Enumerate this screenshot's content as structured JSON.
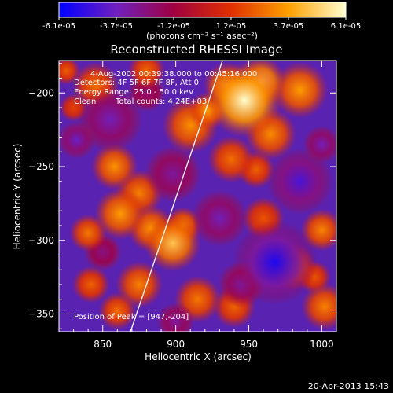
{
  "chart_data": {
    "type": "heatmap",
    "title": "Reconstructed RHESSI Image",
    "xlabel": "Heliocentric X (arcsec)",
    "ylabel": "Heliocentric Y (arcsec)",
    "xlim": [
      820,
      1010
    ],
    "ylim": [
      -362,
      -178
    ],
    "xticks": [
      850,
      900,
      950,
      1000
    ],
    "yticks": [
      -200,
      -250,
      -300,
      -350
    ],
    "colorbar": {
      "range": [
        -6.1e-05,
        6.1e-05
      ],
      "tick_labels": [
        "-6.1e-05",
        "-3.7e-05",
        "-1.2e-05",
        "1.2e-05",
        "3.7e-05",
        "6.1e-05"
      ],
      "units": "(photons cm⁻² s⁻¹ asec⁻²)",
      "colors": [
        "#0000ff",
        "#7020c0",
        "#a00040",
        "#e03000",
        "#ffa000",
        "#ffffd0"
      ]
    },
    "annotations": {
      "time": "4-Aug-2002 00:39:38.000 to 00:45:16.000",
      "detectors": "Detectors: 4F 5F 6F 7F 8F, Att 0",
      "energy": "Energy Range: 25.0 - 50.0 keV",
      "clean": "Clean",
      "counts": "Total counts: 4.24E+03",
      "peak": "Position of Peak = [947,-204]"
    },
    "limb_line": [
      [
        869,
        -362
      ],
      [
        932,
        -178
      ]
    ],
    "blobs": [
      {
        "x": 947,
        "y": -205,
        "r": 16,
        "v": 6.1e-05
      },
      {
        "x": 958,
        "y": -193,
        "r": 11,
        "v": 5e-05
      },
      {
        "x": 935,
        "y": -195,
        "r": 10,
        "v": 4.2e-05
      },
      {
        "x": 910,
        "y": -222,
        "r": 12,
        "v": 3.3e-05
      },
      {
        "x": 922,
        "y": -212,
        "r": 8,
        "v": 3.6e-05
      },
      {
        "x": 985,
        "y": -198,
        "r": 12,
        "v": 3.6e-05
      },
      {
        "x": 965,
        "y": -228,
        "r": 11,
        "v": 3.2e-05
      },
      {
        "x": 938,
        "y": -245,
        "r": 10,
        "v": 2.6e-05
      },
      {
        "x": 955,
        "y": -252,
        "r": 8,
        "v": 2.3e-05
      },
      {
        "x": 898,
        "y": -302,
        "r": 12,
        "v": 4.6e-05
      },
      {
        "x": 905,
        "y": -290,
        "r": 8,
        "v": 3.2e-05
      },
      {
        "x": 883,
        "y": -292,
        "r": 10,
        "v": 3.4e-05
      },
      {
        "x": 862,
        "y": -282,
        "r": 11,
        "v": 3.6e-05
      },
      {
        "x": 840,
        "y": -295,
        "r": 8,
        "v": 2.8e-05
      },
      {
        "x": 875,
        "y": -268,
        "r": 10,
        "v": 3e-05
      },
      {
        "x": 858,
        "y": -250,
        "r": 10,
        "v": 3.4e-05
      },
      {
        "x": 842,
        "y": -330,
        "r": 8,
        "v": 2.3e-05
      },
      {
        "x": 875,
        "y": -330,
        "r": 10,
        "v": 3e-05
      },
      {
        "x": 860,
        "y": -348,
        "r": 8,
        "v": 2.6e-05
      },
      {
        "x": 915,
        "y": -340,
        "r": 10,
        "v": 2.8e-05
      },
      {
        "x": 940,
        "y": -345,
        "r": 9,
        "v": 2.4e-05
      },
      {
        "x": 980,
        "y": -318,
        "r": 10,
        "v": 3.2e-05
      },
      {
        "x": 1000,
        "y": -293,
        "r": 9,
        "v": 3.1e-05
      },
      {
        "x": 1002,
        "y": -345,
        "r": 10,
        "v": 3e-05
      },
      {
        "x": 995,
        "y": -325,
        "r": 7,
        "v": 2e-05
      },
      {
        "x": 845,
        "y": -195,
        "r": 10,
        "v": 2.6e-05
      },
      {
        "x": 880,
        "y": -185,
        "r": 8,
        "v": 2.5e-05
      },
      {
        "x": 825,
        "y": -185,
        "r": 6,
        "v": 2.2e-05
      },
      {
        "x": 960,
        "y": -285,
        "r": 9,
        "v": 2e-05
      },
      {
        "x": 830,
        "y": -210,
        "r": 6,
        "v": 1.6e-05
      },
      {
        "x": 855,
        "y": -218,
        "r": 14,
        "v": -3.5e-05
      },
      {
        "x": 832,
        "y": -232,
        "r": 8,
        "v": -3.8e-05
      },
      {
        "x": 898,
        "y": -255,
        "r": 12,
        "v": -3e-05
      },
      {
        "x": 930,
        "y": -285,
        "r": 12,
        "v": -3.5e-05
      },
      {
        "x": 968,
        "y": -315,
        "r": 18,
        "v": -5.5e-05
      },
      {
        "x": 985,
        "y": -260,
        "r": 14,
        "v": -4.5e-05
      },
      {
        "x": 1000,
        "y": -235,
        "r": 8,
        "v": -3.5e-05
      },
      {
        "x": 945,
        "y": -330,
        "r": 10,
        "v": -3e-05
      },
      {
        "x": 900,
        "y": -355,
        "r": 8,
        "v": -3e-05
      },
      {
        "x": 850,
        "y": -308,
        "r": 8,
        "v": -2.5e-05
      },
      {
        "x": 880,
        "y": -200,
        "r": 8,
        "v": -2.2e-05
      }
    ]
  },
  "footer": {
    "timestamp": "20-Apr-2013 15:43"
  }
}
